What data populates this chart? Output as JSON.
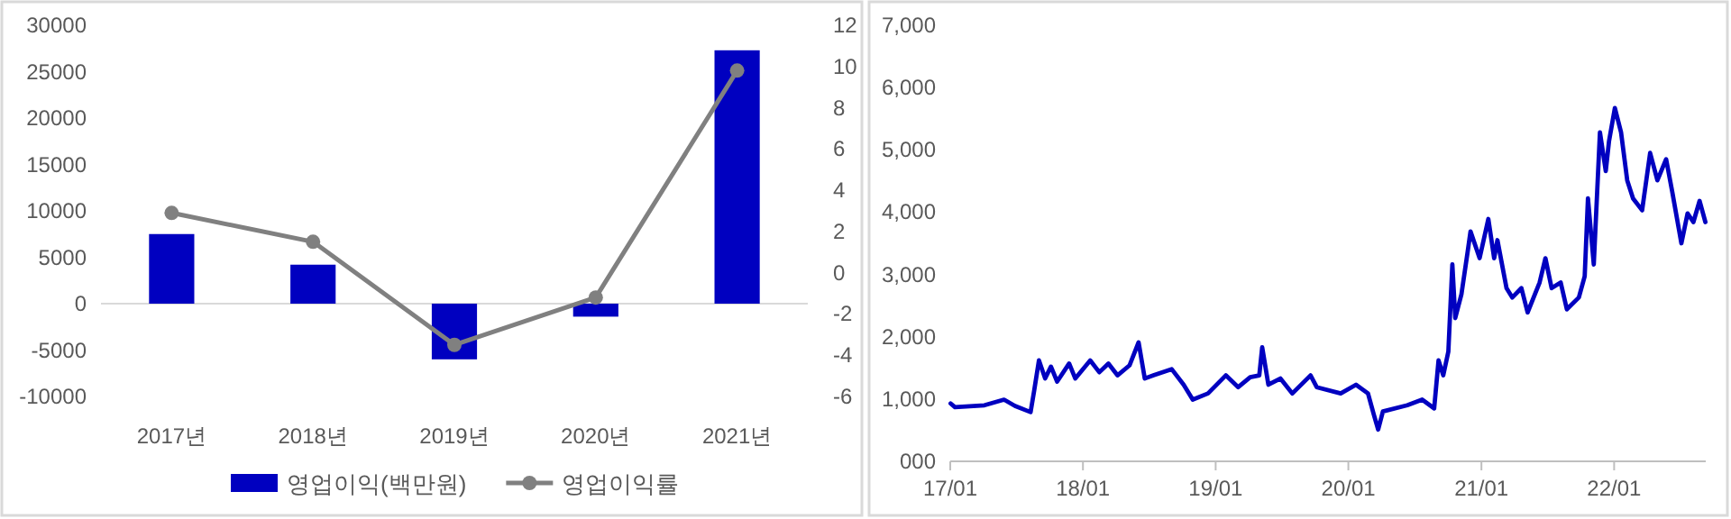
{
  "chart_data": [
    {
      "type": "bar",
      "categories": [
        "2017년",
        "2018년",
        "2019년",
        "2020년",
        "2021년"
      ],
      "series": [
        {
          "name": "영업이익(백만원)",
          "type": "bar",
          "color": "#0000c0",
          "values": [
            7500,
            4200,
            -6000,
            -1400,
            27300
          ]
        },
        {
          "name": "영업이익률",
          "type": "line",
          "axis": "y2",
          "color": "#808080",
          "marker": "circle",
          "values": [
            2.9,
            1.5,
            -3.5,
            -1.2,
            9.8
          ]
        }
      ],
      "ylim": [
        -10000,
        30000
      ],
      "yticks": [
        -10000,
        -5000,
        0,
        5000,
        10000,
        15000,
        20000,
        25000,
        30000
      ],
      "y2lim": [
        -6,
        12
      ],
      "y2ticks": [
        -6,
        -4,
        -2,
        0,
        2,
        4,
        6,
        8,
        10,
        12
      ],
      "legend": "bottom"
    },
    {
      "type": "line",
      "x": [
        "2017-01-02",
        "2017-01-14",
        "2017-04-05",
        "2017-05-29",
        "2017-06-28",
        "2017-08-10",
        "2017-08-20",
        "2017-09-02",
        "2017-09-19",
        "2017-10-05",
        "2017-10-22",
        "2017-11-24",
        "2017-12-11",
        "2018-01-21",
        "2018-02-15",
        "2018-03-12",
        "2018-04-06",
        "2018-05-09",
        "2018-06-03",
        "2018-06-20",
        "2018-07-14",
        "2018-09-02",
        "2018-10-05",
        "2018-10-30",
        "2018-12-11",
        "2019-01-29",
        "2019-03-04",
        "2019-04-06",
        "2019-05-01",
        "2019-05-09",
        "2019-05-26",
        "2019-06-28",
        "2019-07-31",
        "2019-09-19",
        "2019-10-06",
        "2019-12-11",
        "2020-01-22",
        "2020-02-24",
        "2020-03-11",
        "2020-03-23",
        "2020-04-05",
        "2020-06-11",
        "2020-07-22",
        "2020-08-24",
        "2020-09-05",
        "2020-09-18",
        "2020-10-02",
        "2020-10-13",
        "2020-10-21",
        "2020-11-07",
        "2020-11-24",
        "2020-12-02",
        "2020-12-27",
        "2021-01-20",
        "2021-02-05",
        "2021-02-14",
        "2021-03-11",
        "2021-03-27",
        "2021-04-21",
        "2021-05-08",
        "2021-06-10",
        "2021-06-26",
        "2021-07-13",
        "2021-08-07",
        "2021-08-24",
        "2021-09-26",
        "2021-10-12",
        "2021-10-21",
        "2021-11-06",
        "2021-11-23",
        "2021-12-09",
        "2021-12-18",
        "2022-01-03",
        "2022-01-20",
        "2022-02-06",
        "2022-02-22",
        "2022-03-19",
        "2022-04-10",
        "2022-04-30",
        "2022-05-24",
        "2022-06-10",
        "2022-07-05",
        "2022-07-22",
        "2022-08-07",
        "2022-08-24",
        "2022-09-09"
      ],
      "series": [
        {
          "color": "#0000c0",
          "values": [
            930,
            870,
            900,
            990,
            890,
            790,
            1140,
            1620,
            1330,
            1520,
            1280,
            1570,
            1330,
            1620,
            1430,
            1570,
            1380,
            1540,
            1910,
            1330,
            1380,
            1480,
            1230,
            990,
            1090,
            1380,
            1190,
            1350,
            1380,
            1830,
            1230,
            1330,
            1090,
            1380,
            1190,
            1090,
            1230,
            1090,
            750,
            510,
            800,
            900,
            990,
            850,
            1620,
            1380,
            1760,
            3160,
            2300,
            2680,
            3360,
            3690,
            3260,
            3890,
            3260,
            3550,
            2780,
            2630,
            2780,
            2390,
            2870,
            3260,
            2780,
            2870,
            2440,
            2630,
            2970,
            4220,
            3160,
            5280,
            4660,
            5140,
            5670,
            5280,
            4510,
            4220,
            4030,
            4950,
            4510,
            4850,
            4320,
            3500,
            3980,
            3840,
            4180,
            3840
          ]
        }
      ],
      "xlim": [
        "2017-01-01",
        "2022-09-10"
      ],
      "xticks": [
        {
          "value": "2017-01-01",
          "label": "17/01"
        },
        {
          "value": "2018-01-01",
          "label": "18/01"
        },
        {
          "value": "2019-01-01",
          "label": "19/01"
        },
        {
          "value": "2020-01-01",
          "label": "20/01"
        },
        {
          "value": "2021-01-01",
          "label": "21/01"
        },
        {
          "value": "2022-01-01",
          "label": "22/01"
        }
      ],
      "ylim": [
        0,
        7000
      ],
      "yticks": [
        {
          "value": 0,
          "label": "000"
        },
        {
          "value": 1000,
          "label": "1,000"
        },
        {
          "value": 2000,
          "label": "2,000"
        },
        {
          "value": 3000,
          "label": "3,000"
        },
        {
          "value": 4000,
          "label": "4,000"
        },
        {
          "value": 5000,
          "label": "5,000"
        },
        {
          "value": 6000,
          "label": "6,000"
        },
        {
          "value": 7000,
          "label": "7,000"
        }
      ]
    }
  ]
}
